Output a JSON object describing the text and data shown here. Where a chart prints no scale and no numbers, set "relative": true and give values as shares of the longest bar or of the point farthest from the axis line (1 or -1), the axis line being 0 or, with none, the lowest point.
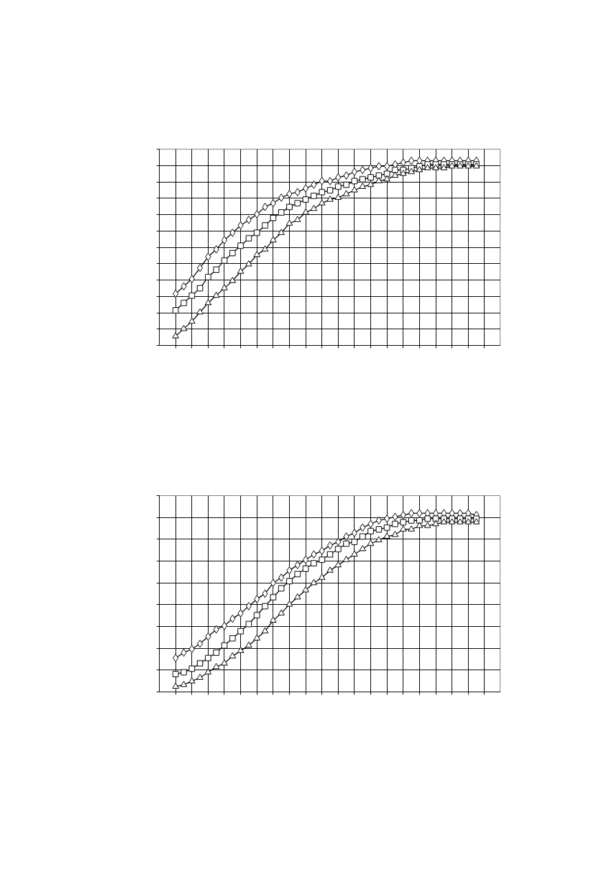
{
  "chart_data": [
    {
      "type": "line",
      "relative": true,
      "categories": [
        null,
        null,
        null,
        null,
        null,
        null,
        null,
        null,
        null,
        null,
        null,
        null,
        null,
        null,
        null,
        null,
        null,
        null,
        null,
        null,
        null,
        null,
        null,
        null,
        null,
        null,
        null,
        null,
        null,
        null,
        null,
        null,
        null,
        null,
        null,
        null,
        null,
        null
      ],
      "grid": true,
      "tick_labels": false,
      "line_style": "solid",
      "series": [
        {
          "color": "#000000",
          "marker": "diamond",
          "values": [
            0.28,
            0.32,
            0.36,
            0.42,
            0.48,
            0.52,
            0.57,
            0.61,
            0.65,
            0.68,
            0.71,
            0.75,
            0.77,
            0.8,
            0.82,
            0.83,
            0.85,
            0.87,
            0.89,
            0.89,
            0.91,
            0.92,
            0.94,
            0.95,
            0.96,
            0.97,
            0.97,
            0.98,
            0.99,
            1.0,
            1.0,
            1.0,
            1.0,
            1.0,
            1.0,
            1.0,
            1.0,
            1.0
          ]
        },
        {
          "color": "#000000",
          "marker": "square",
          "values": [
            0.19,
            0.23,
            0.27,
            0.31,
            0.37,
            0.41,
            0.46,
            0.5,
            0.54,
            0.58,
            0.61,
            0.65,
            0.69,
            0.72,
            0.75,
            0.77,
            0.79,
            0.81,
            0.83,
            0.84,
            0.86,
            0.87,
            0.89,
            0.9,
            0.91,
            0.92,
            0.93,
            0.95,
            0.95,
            0.96,
            0.97,
            0.98,
            0.98,
            0.98,
            0.98,
            0.98,
            0.98,
            0.98
          ]
        },
        {
          "color": "#000000",
          "marker": "triangle",
          "values": [
            0.05,
            0.09,
            0.13,
            0.18,
            0.23,
            0.27,
            0.31,
            0.35,
            0.4,
            0.44,
            0.49,
            0.52,
            0.57,
            0.61,
            0.66,
            0.68,
            0.72,
            0.74,
            0.77,
            0.79,
            0.8,
            0.82,
            0.84,
            0.86,
            0.87,
            0.89,
            0.9,
            0.92,
            0.93,
            0.94,
            0.95,
            0.96,
            0.96,
            0.96,
            0.97,
            0.97,
            0.97,
            0.97
          ]
        }
      ]
    },
    {
      "type": "line",
      "relative": true,
      "categories": [
        null,
        null,
        null,
        null,
        null,
        null,
        null,
        null,
        null,
        null,
        null,
        null,
        null,
        null,
        null,
        null,
        null,
        null,
        null,
        null,
        null,
        null,
        null,
        null,
        null,
        null,
        null,
        null,
        null,
        null,
        null,
        null,
        null,
        null,
        null,
        null,
        null,
        null
      ],
      "grid": true,
      "tick_labels": false,
      "line_style": "solid",
      "series": [
        {
          "color": "#000000",
          "marker": "diamond",
          "values": [
            0.19,
            0.22,
            0.24,
            0.27,
            0.31,
            0.35,
            0.37,
            0.41,
            0.44,
            0.48,
            0.52,
            0.55,
            0.61,
            0.64,
            0.68,
            0.71,
            0.74,
            0.77,
            0.79,
            0.82,
            0.84,
            0.87,
            0.89,
            0.92,
            0.94,
            0.96,
            0.97,
            0.98,
            0.99,
            1.0,
            1.0,
            1.0,
            1.0,
            1.0,
            1.0,
            1.0,
            1.0,
            0.99
          ]
        },
        {
          "color": "#000000",
          "marker": "square",
          "values": [
            0.1,
            0.11,
            0.13,
            0.16,
            0.19,
            0.22,
            0.26,
            0.3,
            0.34,
            0.38,
            0.43,
            0.48,
            0.53,
            0.58,
            0.62,
            0.66,
            0.69,
            0.72,
            0.74,
            0.77,
            0.8,
            0.83,
            0.84,
            0.87,
            0.9,
            0.91,
            0.92,
            0.94,
            0.95,
            0.96,
            0.96,
            0.97,
            0.97,
            0.97,
            0.97,
            0.97,
            0.97,
            0.97
          ]
        },
        {
          "color": "#000000",
          "marker": "triangle",
          "values": [
            0.03,
            0.04,
            0.06,
            0.08,
            0.11,
            0.14,
            0.16,
            0.2,
            0.23,
            0.26,
            0.3,
            0.34,
            0.4,
            0.44,
            0.49,
            0.53,
            0.57,
            0.61,
            0.64,
            0.68,
            0.71,
            0.74,
            0.77,
            0.8,
            0.83,
            0.85,
            0.87,
            0.88,
            0.91,
            0.91,
            0.93,
            0.93,
            0.94,
            0.95,
            0.95,
            0.95,
            0.95,
            0.95
          ]
        }
      ]
    }
  ]
}
